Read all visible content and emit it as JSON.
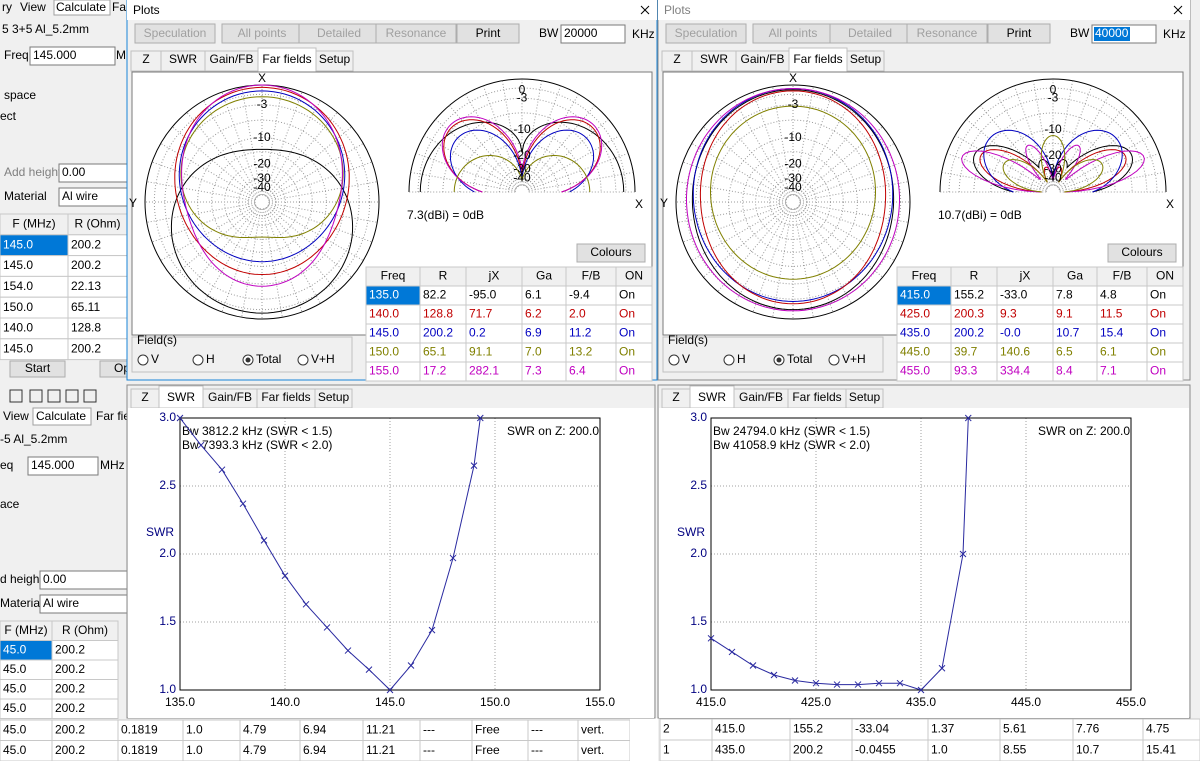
{
  "bg_top": {
    "menu": [
      "ry",
      "View",
      "Calculate",
      "Fa"
    ],
    "model": "5 3+5 Al_5.2mm",
    "freq_label": "Freq",
    "freq_value": "145.000",
    "unit": "MH",
    "space": "space",
    "ect": "ect",
    "add_height_label": "Add height",
    "add_height": "0.00",
    "material_label": "Material",
    "material": "Al wire",
    "table": {
      "header": [
        "F (MHz)",
        "R (Ohm)"
      ],
      "rows": [
        [
          "145.0",
          "200.2"
        ],
        [
          "145.0",
          "200.2"
        ],
        [
          "154.0",
          "22.13"
        ],
        [
          "150.0",
          "65.11"
        ],
        [
          "140.0",
          "128.8"
        ],
        [
          "145.0",
          "200.2"
        ]
      ]
    },
    "buttons": [
      "Start",
      "Opti"
    ]
  },
  "bg_bottom": {
    "menu": [
      "View",
      "Calculate",
      "Far fie"
    ],
    "model": "-5 Al_5.2mm",
    "freq_label": "eq",
    "freq_value": "145.000",
    "unit": "MHz",
    "space": "ace",
    "add_height_label": "d height",
    "add_height": "0.00",
    "material_label": "Material",
    "material": "Al wire",
    "table": {
      "header": [
        "F (MHz)",
        "R (Ohm)"
      ],
      "rows": [
        [
          "45.0",
          "200.2"
        ],
        [
          "45.0",
          "200.2"
        ],
        [
          "45.0",
          "200.2"
        ],
        [
          "45.0",
          "200.2"
        ]
      ]
    },
    "bottom_rows": [
      [
        "45.0",
        "200.2",
        "0.1819",
        "1.0",
        "4.79",
        "6.94",
        "11.21",
        "---",
        "Free",
        "---",
        "vert."
      ],
      [
        "45.0",
        "200.2",
        "0.1819",
        "1.0",
        "4.79",
        "6.94",
        "11.21",
        "---",
        "Free",
        "---",
        "vert."
      ]
    ]
  },
  "right_table": {
    "rows": [
      [
        "2",
        "415.0",
        "155.2",
        "-33.04",
        "1.37",
        "5.61",
        "7.76",
        "4.75"
      ],
      [
        "1",
        "435.0",
        "200.2",
        "-0.0455",
        "1.0",
        "8.55",
        "10.7",
        "15.41"
      ]
    ]
  },
  "plots": [
    {
      "title": "Plots",
      "buttons": [
        "Speculation",
        "All points",
        "Detailed",
        "Resonance",
        "Print"
      ],
      "bw_label": "BW",
      "bw": "20000",
      "bw_unit": "KHz",
      "tabs": [
        "Z",
        "SWR",
        "Gain/FB",
        "Far fields",
        "Setup"
      ],
      "active_tab": 3,
      "axis_x": "X",
      "axis_y": "Y",
      "rings": [
        "-3",
        "-10",
        "-20",
        "-30",
        "-40"
      ],
      "half_top": "0",
      "reference": "7.3(dBi) = 0dB",
      "colours": "Colours",
      "table": {
        "header": [
          "Freq",
          "R",
          "jX",
          "Ga",
          "F/B",
          "ON"
        ],
        "rows": [
          {
            "color": "#000000",
            "cells": [
              "135.0",
              "82.2",
              "-95.0",
              "6.1",
              "-9.4",
              "On"
            ]
          },
          {
            "color": "#c00000",
            "cells": [
              "140.0",
              "128.8",
              "71.7",
              "6.2",
              "2.0",
              "On"
            ]
          },
          {
            "color": "#0000c0",
            "cells": [
              "145.0",
              "200.2",
              "0.2",
              "6.9",
              "11.2",
              "On"
            ]
          },
          {
            "color": "#808000",
            "cells": [
              "150.0",
              "65.1",
              "91.1",
              "7.0",
              "13.2",
              "On"
            ]
          },
          {
            "color": "#c000c0",
            "cells": [
              "155.0",
              "17.2",
              "282.1",
              "7.3",
              "6.4",
              "On"
            ]
          }
        ]
      },
      "fields_label": "Field(s)",
      "fields": [
        "V",
        "H",
        "Total",
        "V+H"
      ],
      "selected_field": 2
    },
    {
      "title": "Plots",
      "buttons": [
        "Speculation",
        "All points",
        "Detailed",
        "Resonance",
        "Print"
      ],
      "bw_label": "BW",
      "bw": "40000",
      "bw_unit": "KHz",
      "tabs": [
        "Z",
        "SWR",
        "Gain/FB",
        "Far fields",
        "Setup"
      ],
      "active_tab": 3,
      "axis_x": "X",
      "axis_y": "Y",
      "rings": [
        "-3",
        "-10",
        "-20",
        "-30",
        "-40"
      ],
      "half_top": "0",
      "reference": "10.7(dBi) = 0dB",
      "colours": "Colours",
      "table": {
        "header": [
          "Freq",
          "R",
          "jX",
          "Ga",
          "F/B",
          "ON"
        ],
        "rows": [
          {
            "color": "#000000",
            "cells": [
              "415.0",
              "155.2",
              "-33.0",
              "7.8",
              "4.8",
              "On"
            ]
          },
          {
            "color": "#c00000",
            "cells": [
              "425.0",
              "200.3",
              "9.3",
              "9.1",
              "11.5",
              "On"
            ]
          },
          {
            "color": "#0000c0",
            "cells": [
              "435.0",
              "200.2",
              "-0.0",
              "10.7",
              "15.4",
              "On"
            ]
          },
          {
            "color": "#808000",
            "cells": [
              "445.0",
              "39.7",
              "140.6",
              "6.5",
              "6.1",
              "On"
            ]
          },
          {
            "color": "#c000c0",
            "cells": [
              "455.0",
              "93.3",
              "334.4",
              "8.4",
              "7.1",
              "On"
            ]
          }
        ]
      },
      "fields_label": "Field(s)",
      "fields": [
        "V",
        "H",
        "Total",
        "V+H"
      ],
      "selected_field": 2
    }
  ],
  "swr": [
    {
      "tabs": [
        "Z",
        "SWR",
        "Gain/FB",
        "Far fields",
        "Setup"
      ],
      "active_tab": 1,
      "y_label": "SWR",
      "notes": [
        "Bw 3812.2 kHz (SWR < 1.5)",
        "Bw 7393.3 kHz (SWR < 2.0)"
      ],
      "swr_on": "SWR on Z: 200.0",
      "color": "#2a2aa0",
      "xlim": [
        135,
        155
      ],
      "ylim": [
        1,
        3
      ],
      "xticks": [
        {
          "value": 135,
          "label": "135.0"
        },
        {
          "value": 140,
          "label": "140.0"
        },
        {
          "value": 145,
          "label": "145.0"
        },
        {
          "value": 150,
          "label": "150.0"
        },
        {
          "value": 155,
          "label": "155.0"
        }
      ],
      "yticks": [
        {
          "value": 1,
          "label": "1.0"
        },
        1.5,
        {
          "value": 2,
          "label": "2.0"
        },
        2.5,
        {
          "value": 3,
          "label": "3.0"
        }
      ],
      "x": [
        135,
        136,
        137,
        138,
        139,
        140,
        141,
        142,
        143,
        144,
        145,
        146,
        147,
        148,
        149,
        149.3
      ],
      "values": [
        3.0,
        2.8,
        2.62,
        2.37,
        2.1,
        1.84,
        1.63,
        1.46,
        1.29,
        1.15,
        1.0,
        1.18,
        1.44,
        1.97,
        2.65,
        3.0
      ]
    },
    {
      "tabs": [
        "Z",
        "SWR",
        "Gain/FB",
        "Far fields",
        "Setup"
      ],
      "active_tab": 1,
      "y_label": "SWR",
      "notes": [
        "Bw 24794.0 kHz (SWR < 1.5)",
        "Bw 41058.9 kHz (SWR < 2.0)"
      ],
      "swr_on": "SWR on Z: 200.0",
      "color": "#2a2aa0",
      "xlim": [
        415,
        455
      ],
      "ylim": [
        1,
        3
      ],
      "xticks": [
        {
          "value": 415,
          "label": "415.0"
        },
        {
          "value": 425,
          "label": "425.0"
        },
        {
          "value": 435,
          "label": "435.0"
        },
        {
          "value": 445,
          "label": "445.0"
        },
        {
          "value": 455,
          "label": "455.0"
        }
      ],
      "yticks": [
        {
          "value": 1,
          "label": "1.0"
        },
        1.5,
        {
          "value": 2,
          "label": "2.0"
        },
        2.5,
        {
          "value": 3,
          "label": "3.0"
        }
      ],
      "x": [
        415,
        417,
        419,
        421,
        423,
        425,
        427,
        429,
        431,
        433,
        435,
        437,
        439,
        439.5
      ],
      "values": [
        1.38,
        1.28,
        1.18,
        1.11,
        1.07,
        1.05,
        1.04,
        1.04,
        1.05,
        1.05,
        1.0,
        1.16,
        2.0,
        3.0
      ]
    }
  ]
}
